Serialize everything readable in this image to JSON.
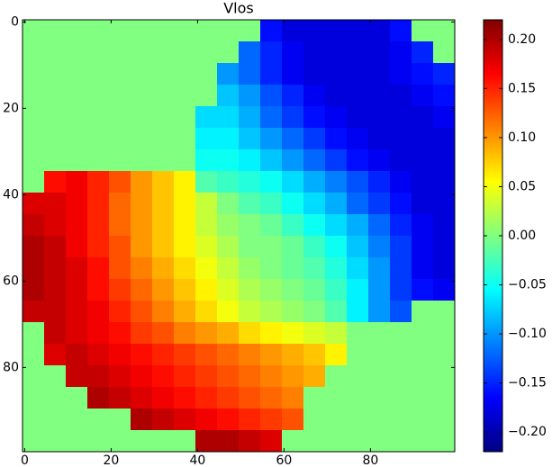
{
  "chart_data": {
    "type": "heatmap",
    "title": "Vlos",
    "colormap": "jet",
    "xlim": [
      -0.5,
      99.5
    ],
    "ylim": [
      99.5,
      -0.5
    ],
    "xticks": [
      0,
      20,
      40,
      60,
      80
    ],
    "yticks": [
      0,
      20,
      40,
      60,
      80
    ],
    "clim": [
      -0.22,
      0.22
    ],
    "cticks": [
      {
        "value": -0.2,
        "label": "−0.20"
      },
      {
        "value": -0.15,
        "label": "−0.15"
      },
      {
        "value": -0.1,
        "label": "−0.10"
      },
      {
        "value": -0.05,
        "label": "−0.05"
      },
      {
        "value": 0,
        "label": "0.00"
      },
      {
        "value": 0.05,
        "label": "0.05"
      },
      {
        "value": 0.1,
        "label": "0.10"
      },
      {
        "value": 0.15,
        "label": "0.15"
      },
      {
        "value": 0.2,
        "label": "0.20"
      }
    ],
    "z": [
      [
        0,
        0,
        0,
        0,
        0,
        0,
        0,
        0,
        0,
        0,
        0,
        -0.16,
        -0.18,
        -0.18,
        -0.18,
        -0.18,
        -0.18,
        -0.16,
        0,
        0
      ],
      [
        0,
        0,
        0,
        0,
        0,
        0,
        0,
        0,
        0,
        0,
        -0.12,
        -0.15,
        -0.17,
        -0.18,
        -0.18,
        -0.18,
        -0.18,
        -0.17,
        -0.15,
        0
      ],
      [
        0,
        0,
        0,
        0,
        0,
        0,
        0,
        0,
        0,
        -0.1,
        -0.12,
        -0.15,
        -0.17,
        -0.18,
        -0.18,
        -0.18,
        -0.18,
        -0.17,
        -0.16,
        -0.15
      ],
      [
        0,
        0,
        0,
        0,
        0,
        0,
        0,
        0,
        0,
        -0.08,
        -0.1,
        -0.13,
        -0.15,
        -0.17,
        -0.18,
        -0.18,
        -0.18,
        -0.18,
        -0.17,
        -0.16
      ],
      [
        0,
        0,
        0,
        0,
        0,
        0,
        0,
        0,
        -0.07,
        -0.07,
        -0.09,
        -0.12,
        -0.14,
        -0.16,
        -0.17,
        -0.18,
        -0.18,
        -0.18,
        -0.18,
        -0.17
      ],
      [
        0,
        0,
        0,
        0,
        0,
        0,
        0,
        0,
        -0.06,
        -0.06,
        -0.08,
        -0.1,
        -0.12,
        -0.14,
        -0.16,
        -0.17,
        -0.18,
        -0.18,
        -0.18,
        -0.18
      ],
      [
        0,
        0,
        0,
        0,
        0,
        0,
        0,
        0,
        -0.05,
        -0.05,
        -0.06,
        -0.08,
        -0.1,
        -0.12,
        -0.14,
        -0.16,
        -0.17,
        -0.18,
        -0.18,
        -0.18
      ],
      [
        0,
        0.16,
        0.17,
        0.15,
        0.13,
        0.1,
        0.08,
        0.06,
        -0.02,
        -0.03,
        -0.04,
        -0.05,
        -0.07,
        -0.09,
        -0.11,
        -0.13,
        -0.15,
        -0.17,
        -0.18,
        -0.18
      ],
      [
        0.18,
        0.18,
        0.17,
        0.15,
        0.12,
        0.1,
        0.08,
        0.06,
        0.03,
        0,
        -0.02,
        -0.03,
        -0.05,
        -0.07,
        -0.09,
        -0.12,
        -0.14,
        -0.16,
        -0.18,
        -0.18
      ],
      [
        0.19,
        0.18,
        0.17,
        0.15,
        0.12,
        0.1,
        0.08,
        0.06,
        0.03,
        0.01,
        0,
        -0.01,
        -0.03,
        -0.05,
        -0.07,
        -0.09,
        -0.12,
        -0.15,
        -0.17,
        -0.18
      ],
      [
        0.2,
        0.19,
        0.17,
        0.15,
        0.13,
        0.1,
        0.08,
        0.06,
        0.04,
        0.02,
        0,
        0,
        -0.01,
        -0.03,
        -0.05,
        -0.08,
        -0.11,
        -0.14,
        -0.17,
        -0.18
      ],
      [
        0.2,
        0.19,
        0.18,
        0.16,
        0.13,
        0.11,
        0.09,
        0.07,
        0.05,
        0.03,
        0.01,
        0,
        -0.01,
        -0.02,
        -0.04,
        -0.07,
        -0.1,
        -0.14,
        -0.17,
        -0.18
      ],
      [
        0.2,
        0.19,
        0.18,
        0.16,
        0.14,
        0.12,
        0.1,
        0.08,
        0.06,
        0.04,
        0.02,
        0.01,
        0,
        -0.01,
        -0.03,
        -0.06,
        -0.1,
        -0.14,
        -0.16,
        -0.17
      ],
      [
        0.19,
        0.19,
        0.18,
        0.17,
        0.15,
        0.13,
        0.11,
        0.09,
        0.07,
        0.05,
        0.03,
        0.02,
        0.01,
        0,
        -0.02,
        -0.06,
        -0.1,
        -0.13,
        0,
        0
      ],
      [
        0,
        0.19,
        0.18,
        0.17,
        0.16,
        0.14,
        0.13,
        0.11,
        0.1,
        0.09,
        0.07,
        0.06,
        0.05,
        0.04,
        0.03,
        0,
        0,
        0,
        0,
        0
      ],
      [
        0,
        0.18,
        0.19,
        0.18,
        0.17,
        0.16,
        0.15,
        0.14,
        0.13,
        0.12,
        0.11,
        0.1,
        0.09,
        0.08,
        0.06,
        0,
        0,
        0,
        0,
        0
      ],
      [
        0,
        0,
        0.19,
        0.19,
        0.18,
        0.17,
        0.16,
        0.15,
        0.14,
        0.13,
        0.12,
        0.11,
        0.1,
        0.09,
        0,
        0,
        0,
        0,
        0,
        0
      ],
      [
        0,
        0,
        0,
        0.2,
        0.19,
        0.18,
        0.17,
        0.16,
        0.15,
        0.14,
        0.13,
        0.12,
        0.11,
        0,
        0,
        0,
        0,
        0,
        0,
        0
      ],
      [
        0,
        0,
        0,
        0,
        0,
        0.2,
        0.19,
        0.18,
        0.17,
        0.16,
        0.15,
        0.14,
        0.13,
        0,
        0,
        0,
        0,
        0,
        0,
        0
      ],
      [
        0,
        0,
        0,
        0,
        0,
        0,
        0,
        0,
        0.2,
        0.2,
        0.19,
        0.18,
        0,
        0,
        0,
        0,
        0,
        0,
        0,
        0
      ]
    ]
  }
}
